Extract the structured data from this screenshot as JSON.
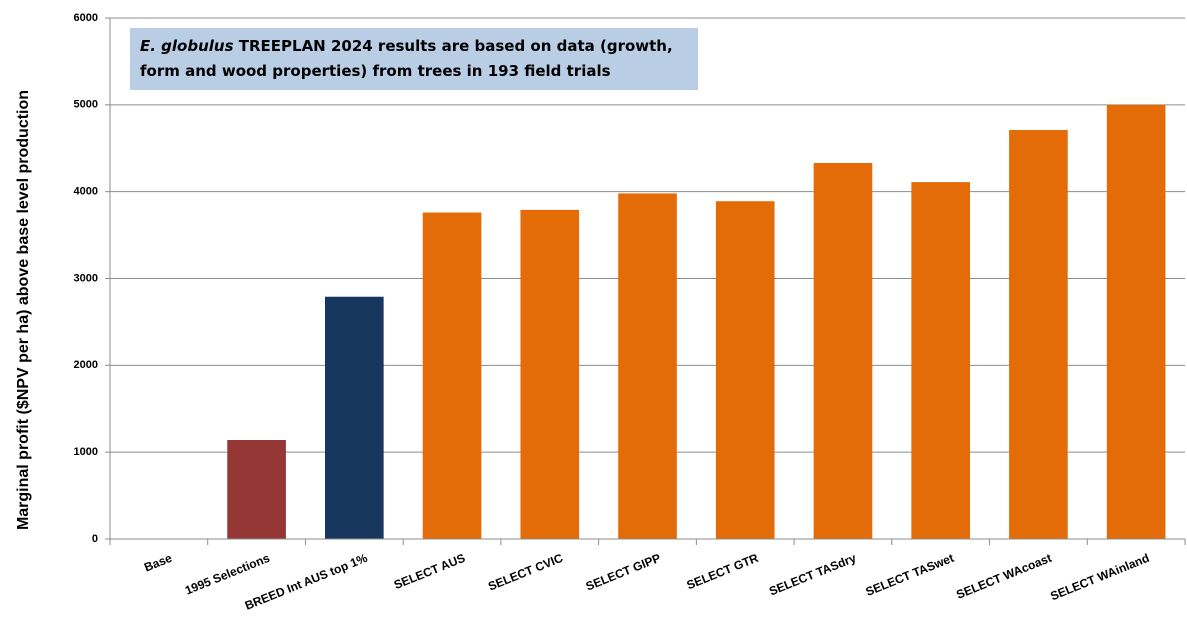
{
  "chart_data": {
    "type": "bar",
    "y_label": "Marginal profit ($NPV per ha) above base level production",
    "annotation": {
      "italic": "E. globulus",
      "text": "TREEPLAN 2024 results are based on data (growth, form and wood properties) from trees in 193 field trials"
    },
    "categories": [
      "Base",
      "1995 Selections",
      "BREED Int AUS top 1%",
      "SELECT AUS",
      "SELECT CVIC",
      "SELECT GIPP",
      "SELECT GTR",
      "SELECT TASdry",
      "SELECT TASwet",
      "SELECT WAcoast",
      "SELECT WAinland"
    ],
    "values": [
      0,
      1140,
      2790,
      3760,
      3790,
      3980,
      3890,
      4330,
      4110,
      4710,
      5000
    ],
    "colors": [
      "#953735",
      "#953735",
      "#17375e",
      "#e36c09",
      "#e36c09",
      "#e36c09",
      "#e36c09",
      "#e36c09",
      "#e36c09",
      "#e36c09",
      "#e36c09"
    ],
    "ylim": [
      0,
      6000
    ],
    "yticks": [
      0,
      1000,
      2000,
      3000,
      4000,
      5000,
      6000
    ],
    "grid": true
  }
}
